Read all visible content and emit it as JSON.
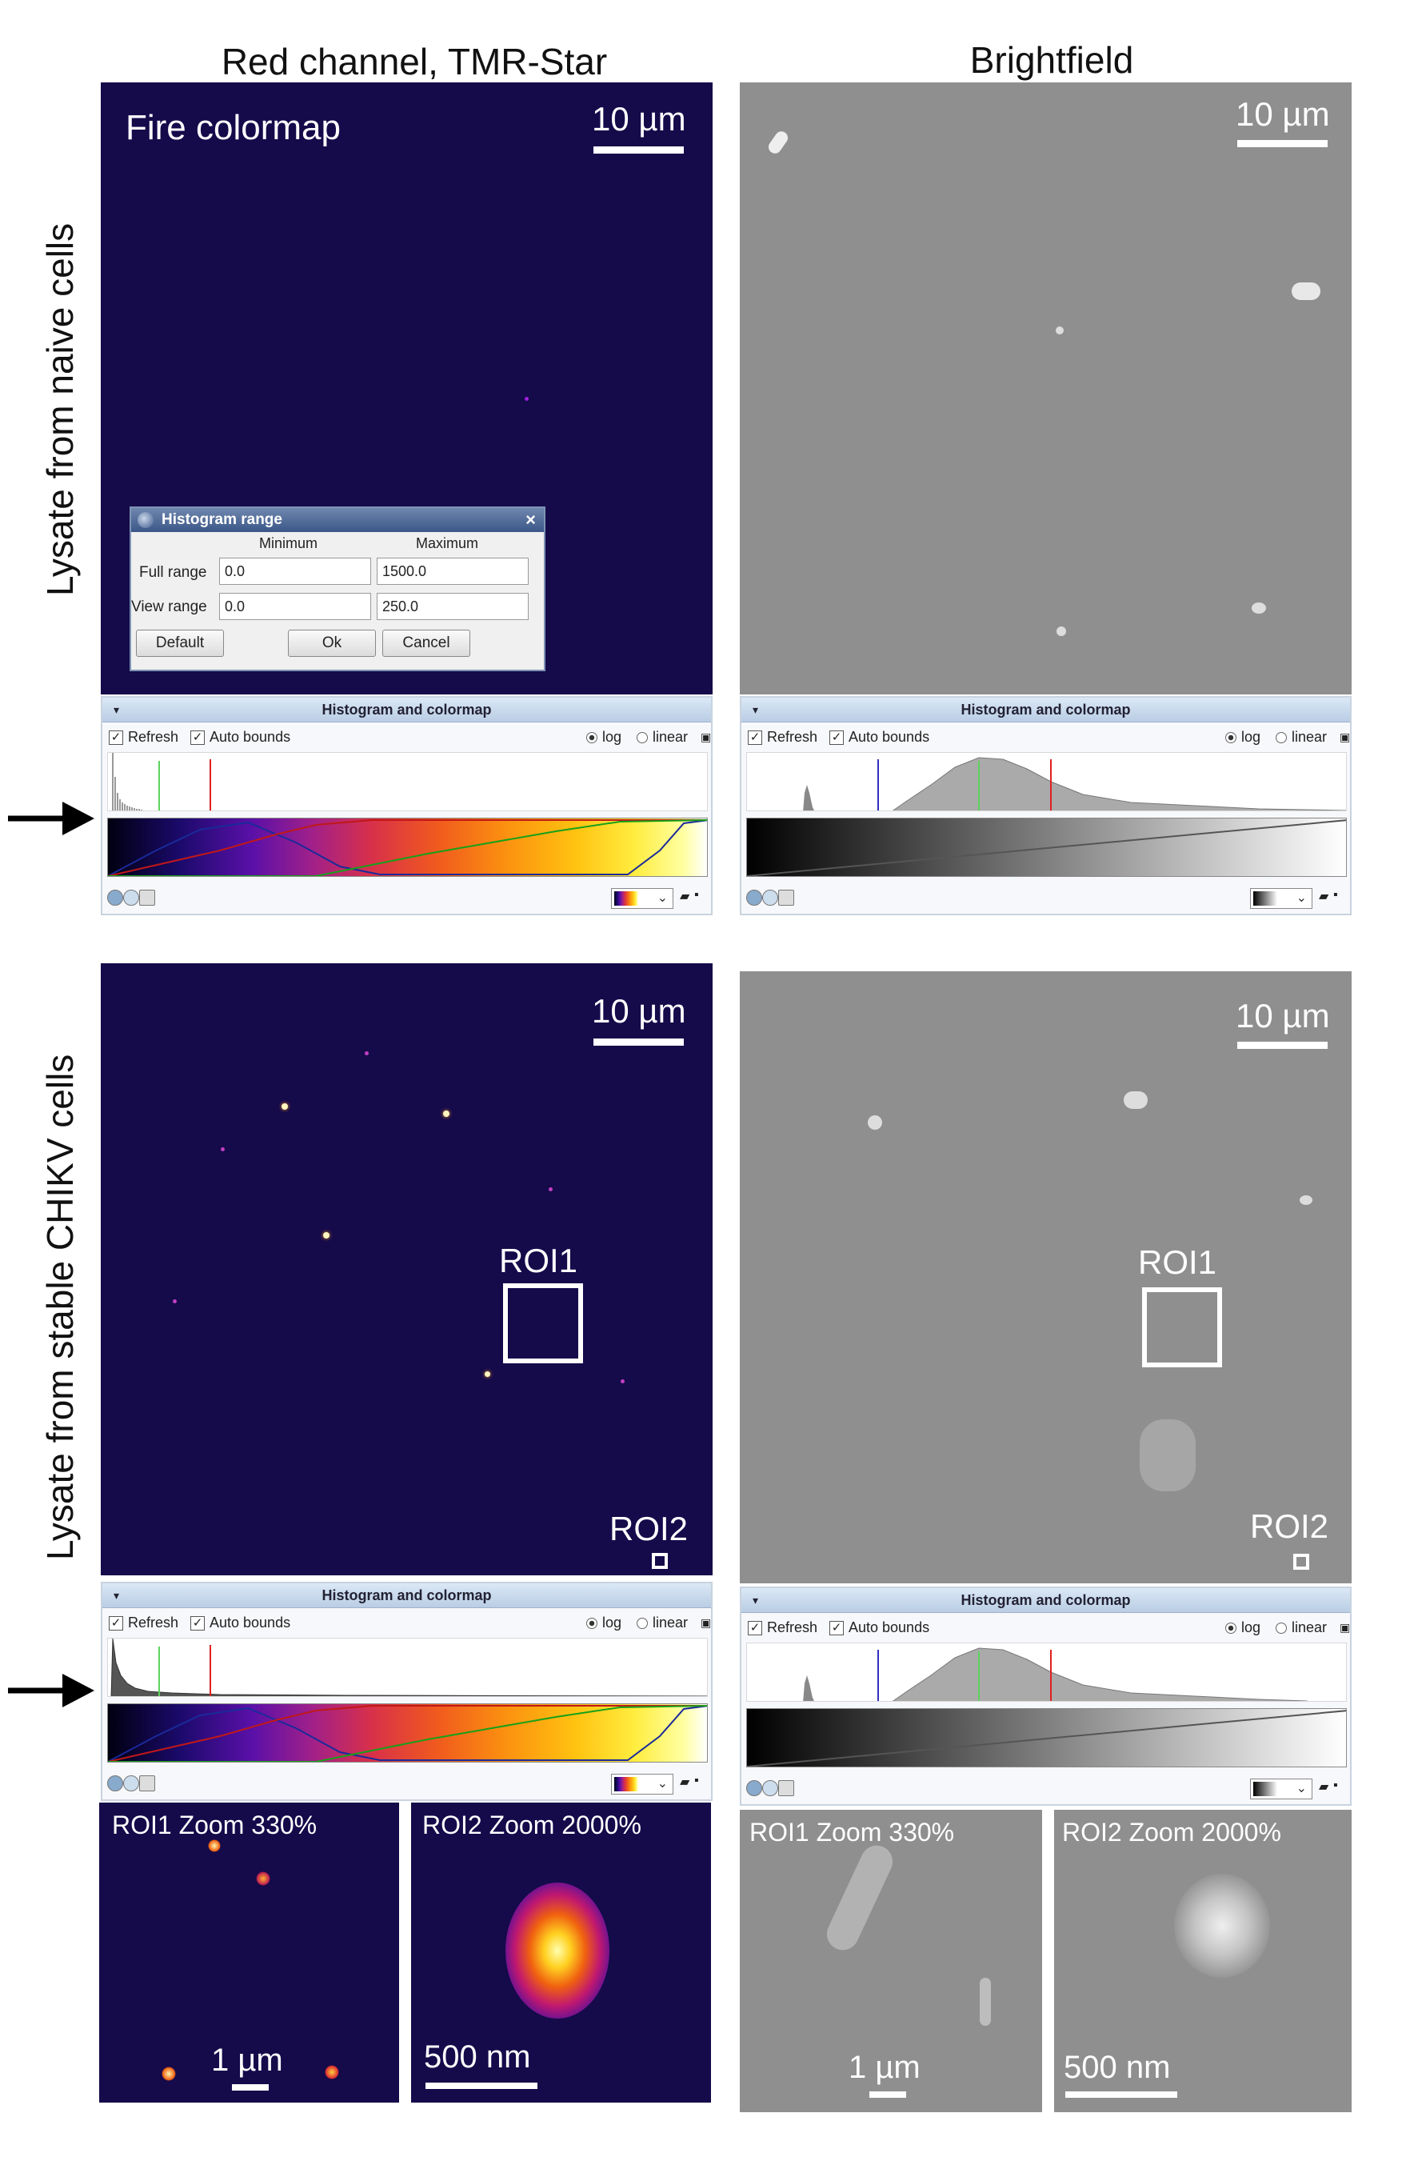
{
  "columns": {
    "left": "Red channel, TMR-Star",
    "right": "Brightfield"
  },
  "rows": {
    "top": "Lysate from naive cells",
    "bottom": "Lysate from stable CHIKV cells"
  },
  "top_left": {
    "label": "Fire colormap",
    "scale": "10 µm"
  },
  "top_right": {
    "scale": "10 µm"
  },
  "bottom_left": {
    "scale": "10 µm",
    "roi1": "ROI1",
    "roi2": "ROI2"
  },
  "bottom_right": {
    "scale": "10 µm",
    "roi1": "ROI1",
    "roi2": "ROI2"
  },
  "dialog": {
    "title": "Histogram range",
    "close": "×",
    "col_min": "Minimum",
    "col_max": "Maximum",
    "full_range_label": "Full range",
    "full_min": "0.0",
    "full_max": "1500.0",
    "view_range_label": "View range",
    "view_min": "0.0",
    "view_max": "250.0",
    "default_btn": "Default",
    "ok_btn": "Ok",
    "cancel_btn": "Cancel"
  },
  "hist_panel": {
    "title": "Histogram and colormap",
    "refresh": "Refresh",
    "auto_bounds": "Auto bounds",
    "log": "log",
    "linear": "linear",
    "caret": "▾",
    "check": "✓",
    "chevron": "⌄"
  },
  "zooms": {
    "fire_roi1": {
      "label": "ROI1 Zoom 330%",
      "scale": "1 µm"
    },
    "fire_roi2": {
      "label": "ROI2 Zoom 2000%",
      "scale": "500 nm"
    },
    "bf_roi1": {
      "label": "ROI1 Zoom 330%",
      "scale": "1 µm"
    },
    "bf_roi2": {
      "label": "ROI2 Zoom 2000%",
      "scale": "500 nm"
    }
  },
  "colors": {
    "fire_bg": "#150a4a",
    "bf_bg": "#8f8f8f",
    "panel_header": "#c7d9ee"
  }
}
